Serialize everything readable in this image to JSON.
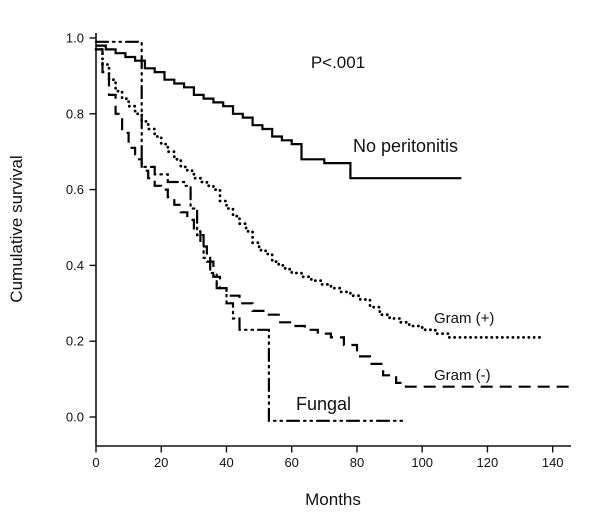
{
  "chart_data": {
    "type": "line",
    "subtype": "kaplan-meier-step",
    "title": "",
    "xlabel": "Months",
    "ylabel": "Cumulative survival",
    "annotation": "P<.001",
    "xlim": [
      0,
      145
    ],
    "ylim": [
      -0.05,
      1.0
    ],
    "x_ticks": [
      "0",
      "20",
      "40",
      "60",
      "80",
      "100",
      "120",
      "140"
    ],
    "y_ticks": [
      "0.0",
      "0.2",
      "0.4",
      "0.6",
      "0.8",
      "1.0"
    ],
    "grid": false,
    "legend": "inline-labels",
    "color": "#000000",
    "series": [
      {
        "name": "No peritonitis",
        "style": "solid",
        "points": [
          [
            0,
            0.98
          ],
          [
            3,
            0.97
          ],
          [
            6,
            0.96
          ],
          [
            9,
            0.95
          ],
          [
            12,
            0.94
          ],
          [
            15,
            0.92
          ],
          [
            18,
            0.91
          ],
          [
            21,
            0.89
          ],
          [
            24,
            0.88
          ],
          [
            27,
            0.87
          ],
          [
            30,
            0.85
          ],
          [
            33,
            0.84
          ],
          [
            36,
            0.83
          ],
          [
            39,
            0.82
          ],
          [
            42,
            0.8
          ],
          [
            45,
            0.79
          ],
          [
            48,
            0.77
          ],
          [
            51,
            0.76
          ],
          [
            54,
            0.74
          ],
          [
            57,
            0.73
          ],
          [
            60,
            0.72
          ],
          [
            63,
            0.68
          ],
          [
            70,
            0.67
          ],
          [
            78,
            0.63
          ],
          [
            112,
            0.63
          ]
        ]
      },
      {
        "name": "Gram (+)",
        "style": "dotted",
        "points": [
          [
            0,
            0.97
          ],
          [
            2,
            0.93
          ],
          [
            4,
            0.89
          ],
          [
            6,
            0.86
          ],
          [
            8,
            0.84
          ],
          [
            10,
            0.82
          ],
          [
            12,
            0.8
          ],
          [
            14,
            0.78
          ],
          [
            16,
            0.76
          ],
          [
            18,
            0.74
          ],
          [
            20,
            0.72
          ],
          [
            22,
            0.7
          ],
          [
            24,
            0.68
          ],
          [
            26,
            0.66
          ],
          [
            28,
            0.65
          ],
          [
            30,
            0.63
          ],
          [
            32,
            0.62
          ],
          [
            34,
            0.61
          ],
          [
            36,
            0.6
          ],
          [
            38,
            0.57
          ],
          [
            40,
            0.55
          ],
          [
            42,
            0.53
          ],
          [
            44,
            0.51
          ],
          [
            46,
            0.49
          ],
          [
            48,
            0.46
          ],
          [
            50,
            0.44
          ],
          [
            52,
            0.43
          ],
          [
            54,
            0.41
          ],
          [
            56,
            0.4
          ],
          [
            58,
            0.39
          ],
          [
            60,
            0.38
          ],
          [
            63,
            0.37
          ],
          [
            66,
            0.36
          ],
          [
            69,
            0.35
          ],
          [
            72,
            0.34
          ],
          [
            75,
            0.33
          ],
          [
            78,
            0.32
          ],
          [
            81,
            0.31
          ],
          [
            84,
            0.29
          ],
          [
            87,
            0.27
          ],
          [
            90,
            0.26
          ],
          [
            93,
            0.25
          ],
          [
            96,
            0.24
          ],
          [
            100,
            0.23
          ],
          [
            104,
            0.22
          ],
          [
            108,
            0.21
          ],
          [
            136,
            0.21
          ]
        ]
      },
      {
        "name": "Gram (-)",
        "style": "dashed",
        "points": [
          [
            0,
            0.97
          ],
          [
            2,
            0.91
          ],
          [
            4,
            0.85
          ],
          [
            6,
            0.8
          ],
          [
            8,
            0.75
          ],
          [
            10,
            0.71
          ],
          [
            12,
            0.68
          ],
          [
            14,
            0.65
          ],
          [
            16,
            0.63
          ],
          [
            18,
            0.61
          ],
          [
            20,
            0.6
          ],
          [
            22,
            0.58
          ],
          [
            24,
            0.56
          ],
          [
            26,
            0.54
          ],
          [
            28,
            0.52
          ],
          [
            30,
            0.49
          ],
          [
            32,
            0.45
          ],
          [
            34,
            0.41
          ],
          [
            36,
            0.37
          ],
          [
            38,
            0.34
          ],
          [
            40,
            0.32
          ],
          [
            44,
            0.3
          ],
          [
            48,
            0.28
          ],
          [
            52,
            0.27
          ],
          [
            56,
            0.25
          ],
          [
            60,
            0.24
          ],
          [
            64,
            0.23
          ],
          [
            68,
            0.22
          ],
          [
            72,
            0.21
          ],
          [
            76,
            0.19
          ],
          [
            80,
            0.16
          ],
          [
            84,
            0.14
          ],
          [
            88,
            0.11
          ],
          [
            92,
            0.09
          ],
          [
            95,
            0.08
          ],
          [
            145,
            0.08
          ]
        ]
      },
      {
        "name": "Fungal",
        "style": "dash-dot-dot",
        "points": [
          [
            0,
            0.99
          ],
          [
            12,
            0.99
          ],
          [
            14,
            0.66
          ],
          [
            18,
            0.64
          ],
          [
            22,
            0.62
          ],
          [
            27,
            0.61
          ],
          [
            29,
            0.55
          ],
          [
            31,
            0.48
          ],
          [
            33,
            0.42
          ],
          [
            35,
            0.38
          ],
          [
            37,
            0.34
          ],
          [
            40,
            0.3
          ],
          [
            42,
            0.26
          ],
          [
            44,
            0.23
          ],
          [
            52,
            0.23
          ],
          [
            53,
            -0.01
          ],
          [
            95,
            -0.01
          ]
        ]
      }
    ]
  }
}
